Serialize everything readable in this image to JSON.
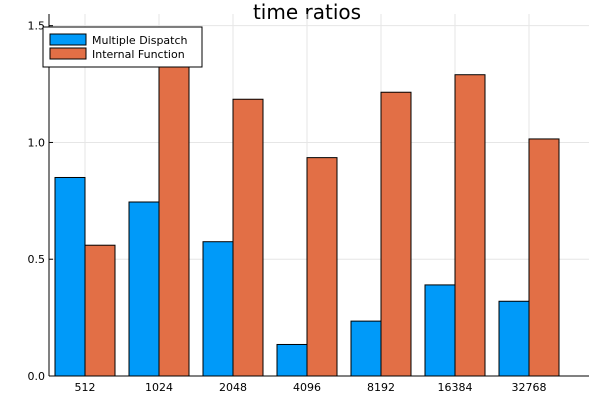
{
  "chart_data": {
    "type": "bar",
    "title": "time ratios",
    "xlabel": "",
    "ylabel": "",
    "categories": [
      "512",
      "1024",
      "2048",
      "4096",
      "8192",
      "16384",
      "32768"
    ],
    "series": [
      {
        "name": "Multiple Dispatch",
        "color": "#009af9",
        "values": [
          0.85,
          0.745,
          0.575,
          0.135,
          0.235,
          0.39,
          0.32
        ]
      },
      {
        "name": "Internal Function",
        "color": "#e26f46",
        "values": [
          0.56,
          1.345,
          1.185,
          0.935,
          1.215,
          1.29,
          1.015
        ]
      }
    ],
    "ylim": [
      0,
      1.55
    ],
    "yticks": [
      0.0,
      0.5,
      1.0,
      1.5
    ],
    "ytick_labels": [
      "0.0",
      "0.5",
      "1.0",
      "1.5"
    ],
    "grid": true,
    "legend_position": "top-left"
  }
}
